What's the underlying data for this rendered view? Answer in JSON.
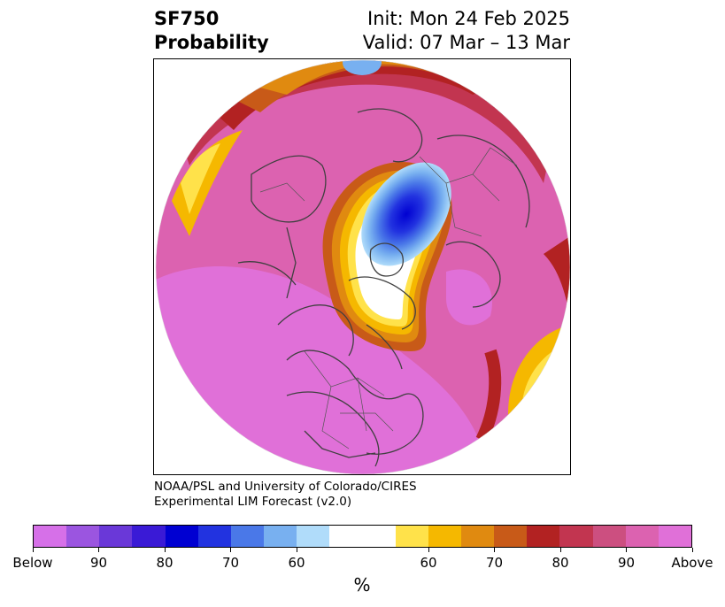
{
  "title": {
    "left_line1": "SF750",
    "left_line2": "Probability",
    "right_line1": "Init: Mon 24 Feb 2025",
    "right_line2": "Valid: 07 Mar – 13 Mar"
  },
  "credit": {
    "line1": "NOAA/PSL and University of Colorado/CIRES",
    "line2": "Experimental LIM Forecast (v2.0)"
  },
  "colorbar": {
    "colors": [
      "#d670e8",
      "#9b55e0",
      "#6a38d8",
      "#3a1ad6",
      "#0000d2",
      "#2233e0",
      "#4a78e8",
      "#78b0f0",
      "#b0dcfa",
      "#ffffff",
      "#ffe24a",
      "#f5b800",
      "#e08a10",
      "#c85a18",
      "#b22222",
      "#c23550",
      "#cc4f80",
      "#dc62b0",
      "#e070d8"
    ],
    "tick_labels": [
      "Below",
      "90",
      "80",
      "70",
      "60",
      "60",
      "70",
      "80",
      "90",
      "Above"
    ],
    "units": "%"
  },
  "map": {
    "projection": "north-polar-stereographic",
    "field": "SF750 probability",
    "dominant_category": "Above",
    "coastline_color": "#404040"
  }
}
